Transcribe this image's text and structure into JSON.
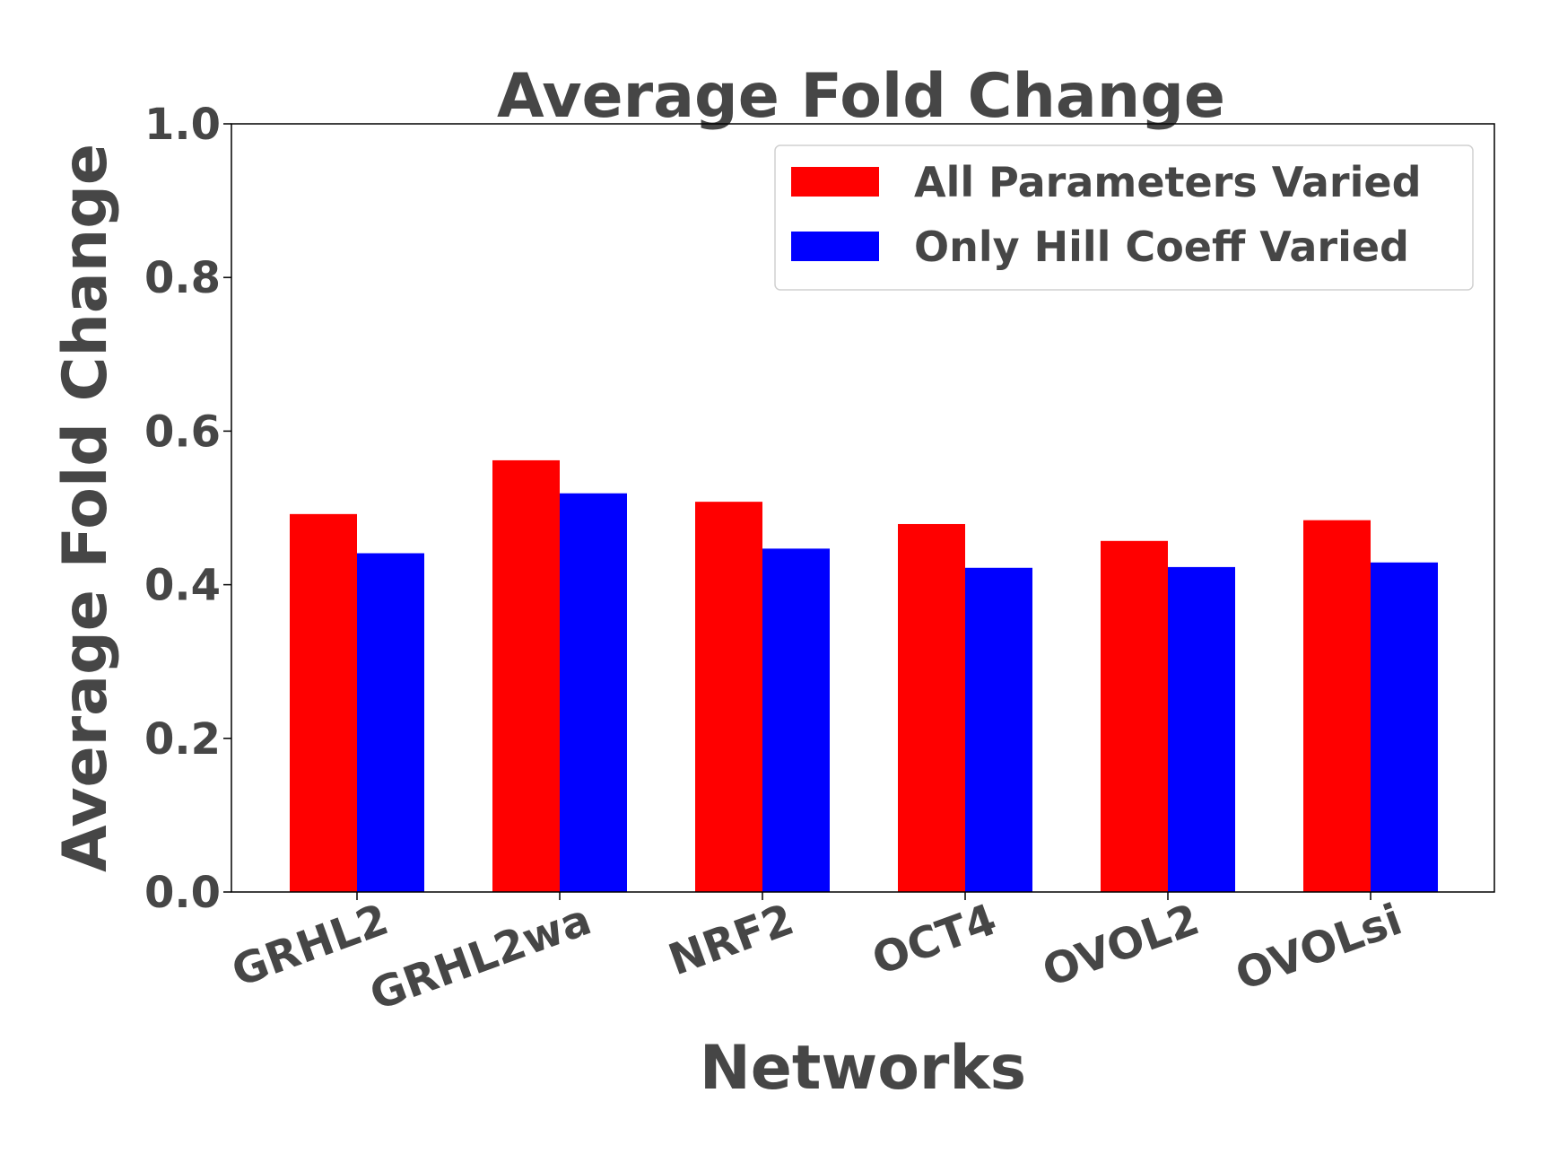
{
  "chart_data": {
    "type": "bar",
    "title": "Average Fold Change",
    "xlabel": "Networks",
    "ylabel": "Average Fold Change",
    "ylim": [
      0,
      1.0
    ],
    "yticks": [
      "0.0",
      "0.2",
      "0.4",
      "0.6",
      "0.8",
      "1.0"
    ],
    "categories": [
      "GRHL2",
      "GRHL2wa",
      "NRF2",
      "OCT4",
      "OVOL2",
      "OVOLsi"
    ],
    "series": [
      {
        "name": "All Parameters Varied",
        "color": "#ff0000",
        "values": [
          0.492,
          0.562,
          0.508,
          0.479,
          0.457,
          0.484
        ]
      },
      {
        "name": "Only Hill Coeff Varied",
        "color": "#0000ff",
        "values": [
          0.441,
          0.519,
          0.447,
          0.422,
          0.423,
          0.429
        ]
      }
    ],
    "legend_position": "top-right",
    "grid": false
  }
}
